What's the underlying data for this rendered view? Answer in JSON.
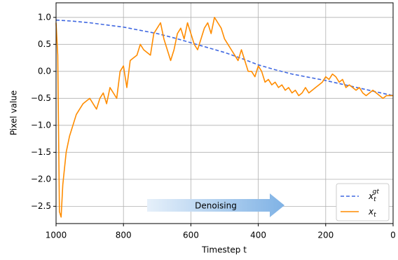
{
  "chart_data": {
    "type": "line",
    "xlabel": "Timestep t",
    "ylabel": "Pixel value",
    "annotation": "Denoising",
    "xlim": [
      1000,
      0
    ],
    "ylim": [
      -2.82,
      1.27
    ],
    "xticks": [
      1000,
      800,
      600,
      400,
      200,
      0
    ],
    "yticks": [
      {
        "value": 1.0,
        "label": "1.0"
      },
      0.5,
      {
        "value": 0.0,
        "label": "0.0"
      },
      {
        "value": -0.5,
        "label": "−0.5"
      },
      {
        "value": -1.0,
        "label": "−1.0"
      },
      {
        "value": -1.5,
        "label": "−1.5"
      },
      {
        "value": -2.0,
        "label": "−2.0"
      },
      {
        "value": -2.5,
        "label": "−2.5"
      }
    ],
    "grid": true,
    "legend": "lower right",
    "series": [
      {
        "name": "x",
        "subscript": "t",
        "superscript": "gt",
        "color": "#4169e1",
        "dashed": true,
        "x": [
          1000,
          950,
          900,
          850,
          800,
          750,
          700,
          650,
          600,
          550,
          500,
          450,
          400,
          350,
          300,
          250,
          200,
          150,
          100,
          50,
          0
        ],
        "values": [
          0.95,
          0.93,
          0.9,
          0.86,
          0.82,
          0.76,
          0.7,
          0.62,
          0.53,
          0.44,
          0.35,
          0.24,
          0.12,
          0.03,
          -0.05,
          -0.11,
          -0.17,
          -0.24,
          -0.31,
          -0.38,
          -0.45
        ]
      },
      {
        "name": "x",
        "subscript": "t",
        "color": "#ff8c00",
        "dashed": false,
        "x": [
          1000,
          995,
          990,
          985,
          980,
          970,
          960,
          950,
          940,
          930,
          920,
          910,
          900,
          890,
          880,
          870,
          860,
          850,
          840,
          830,
          820,
          810,
          800,
          790,
          780,
          770,
          760,
          750,
          740,
          730,
          720,
          710,
          700,
          690,
          680,
          670,
          660,
          650,
          640,
          630,
          620,
          610,
          600,
          590,
          580,
          570,
          560,
          550,
          540,
          530,
          520,
          510,
          500,
          490,
          480,
          470,
          460,
          450,
          440,
          430,
          420,
          410,
          400,
          390,
          380,
          370,
          360,
          350,
          340,
          330,
          320,
          310,
          300,
          290,
          280,
          270,
          260,
          250,
          240,
          230,
          220,
          210,
          200,
          190,
          180,
          170,
          160,
          150,
          140,
          130,
          120,
          110,
          100,
          90,
          80,
          70,
          60,
          50,
          40,
          30,
          20,
          10,
          0
        ],
        "values": [
          0.9,
          0.3,
          -2.6,
          -2.7,
          -2.1,
          -1.5,
          -1.2,
          -1.0,
          -0.8,
          -0.7,
          -0.6,
          -0.55,
          -0.5,
          -0.6,
          -0.7,
          -0.5,
          -0.4,
          -0.6,
          -0.3,
          -0.4,
          -0.5,
          0.0,
          0.1,
          -0.3,
          0.2,
          0.25,
          0.3,
          0.5,
          0.4,
          0.35,
          0.3,
          0.7,
          0.8,
          0.9,
          0.6,
          0.4,
          0.2,
          0.4,
          0.7,
          0.8,
          0.6,
          0.9,
          0.7,
          0.5,
          0.4,
          0.6,
          0.8,
          0.9,
          0.7,
          1.0,
          0.9,
          0.8,
          0.6,
          0.5,
          0.4,
          0.3,
          0.2,
          0.4,
          0.2,
          0.0,
          0.0,
          -0.1,
          0.1,
          0.0,
          -0.2,
          -0.15,
          -0.25,
          -0.2,
          -0.3,
          -0.25,
          -0.35,
          -0.3,
          -0.4,
          -0.35,
          -0.45,
          -0.4,
          -0.3,
          -0.4,
          -0.35,
          -0.3,
          -0.25,
          -0.2,
          -0.1,
          -0.15,
          -0.05,
          -0.1,
          -0.2,
          -0.15,
          -0.3,
          -0.25,
          -0.3,
          -0.35,
          -0.3,
          -0.4,
          -0.45,
          -0.4,
          -0.35,
          -0.4,
          -0.45,
          -0.5,
          -0.45,
          -0.45,
          -0.45
        ]
      }
    ]
  }
}
